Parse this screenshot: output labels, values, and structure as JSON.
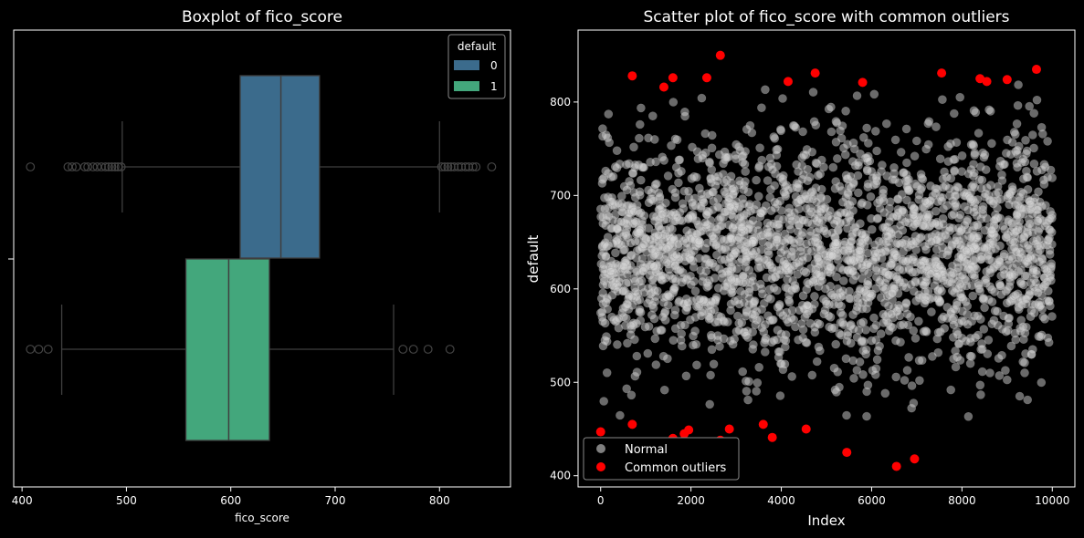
{
  "chart_data": [
    {
      "type": "boxplot",
      "title": "Boxplot of fico_score",
      "xlabel": "fico_score",
      "ylabel": "",
      "xlim": [
        392,
        868
      ],
      "xticks": [
        400,
        500,
        600,
        700,
        800
      ],
      "legend": {
        "title": "default",
        "placement": "top-right"
      },
      "series": [
        {
          "name": "0",
          "color": "#3b6b8c",
          "whisker_low": 496,
          "q1": 609,
          "median": 648,
          "q3": 685,
          "whisker_high": 800,
          "outliers": [
            408,
            444,
            448,
            452,
            460,
            463,
            468,
            472,
            476,
            480,
            483,
            486,
            489,
            492,
            495,
            802,
            805,
            808,
            811,
            814,
            818,
            821,
            825,
            828,
            832,
            835,
            850
          ]
        },
        {
          "name": "1",
          "color": "#43a77c",
          "whisker_low": 438,
          "q1": 557,
          "median": 598,
          "q3": 637,
          "whisker_high": 756,
          "outliers": [
            408,
            416,
            425,
            765,
            775,
            789,
            810
          ]
        }
      ]
    },
    {
      "type": "scatter",
      "title": "Scatter plot of fico_score with common outliers",
      "xlabel": "Index",
      "ylabel": "default",
      "xlim": [
        -500,
        10500
      ],
      "ylim": [
        388,
        877
      ],
      "xticks": [
        0,
        2000,
        4000,
        6000,
        8000,
        10000
      ],
      "yticks": [
        400,
        500,
        600,
        700,
        800
      ],
      "legend_placement": "bottom-left",
      "series": [
        {
          "name": "Normal",
          "color": "#d3d3d3",
          "n_points": 10000,
          "value_range": [
            455,
            820
          ]
        },
        {
          "name": "Common outliers",
          "color": "#ff0000",
          "points": [
            [
              0,
              447
            ],
            [
              700,
              828
            ],
            [
              700,
              455
            ],
            [
              1400,
              816
            ],
            [
              1600,
              826
            ],
            [
              1600,
              440
            ],
            [
              1850,
              445
            ],
            [
              1950,
              449
            ],
            [
              2100,
              408
            ],
            [
              2350,
              826
            ],
            [
              2650,
              438
            ],
            [
              2650,
              850
            ],
            [
              2850,
              450
            ],
            [
              3600,
              455
            ],
            [
              3800,
              441
            ],
            [
              4150,
              822
            ],
            [
              4550,
              450
            ],
            [
              4750,
              831
            ],
            [
              5450,
              425
            ],
            [
              5800,
              821
            ],
            [
              6550,
              410
            ],
            [
              6950,
              418
            ],
            [
              7550,
              831
            ],
            [
              8400,
              825
            ],
            [
              8550,
              822
            ],
            [
              9000,
              824
            ],
            [
              9650,
              835
            ]
          ]
        }
      ]
    }
  ]
}
